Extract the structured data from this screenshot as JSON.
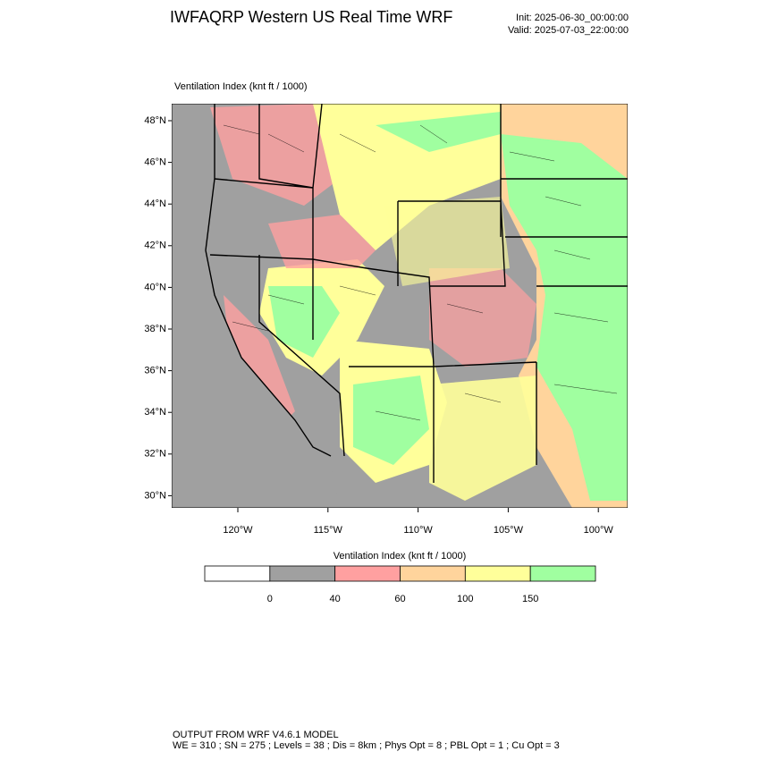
{
  "header": {
    "title": "IWFAQRP Western US Real Time WRF",
    "init": "Init: 2025-06-30_00:00:00",
    "valid": "Valid: 2025-07-03_22:00:00"
  },
  "map": {
    "label": "Ventilation Index   (knt ft / 1000)",
    "lat_labels": [
      "48°N",
      "46°N",
      "44°N",
      "42°N",
      "40°N",
      "38°N",
      "36°N",
      "34°N",
      "32°N",
      "30°N"
    ],
    "lon_labels": [
      "120°W",
      "115°W",
      "110°W",
      "105°W",
      "100°W"
    ]
  },
  "colorbar": {
    "title": "Ventilation Index   (knt ft / 1000)",
    "colors": [
      "#ffffff",
      "#a0a0a0",
      "#ffa0a0",
      "#ffd49c",
      "#ffff9a",
      "#a0ffa0"
    ],
    "ticks": [
      0,
      40,
      60,
      100,
      150
    ]
  },
  "footer": {
    "line1": "OUTPUT FROM WRF V4.6.1 MODEL",
    "line2": "WE = 310 ; SN = 275 ; Levels = 38 ; Dis = 8km ; Phys Opt = 8 ; PBL Opt = 1 ; Cu Opt = 3"
  }
}
